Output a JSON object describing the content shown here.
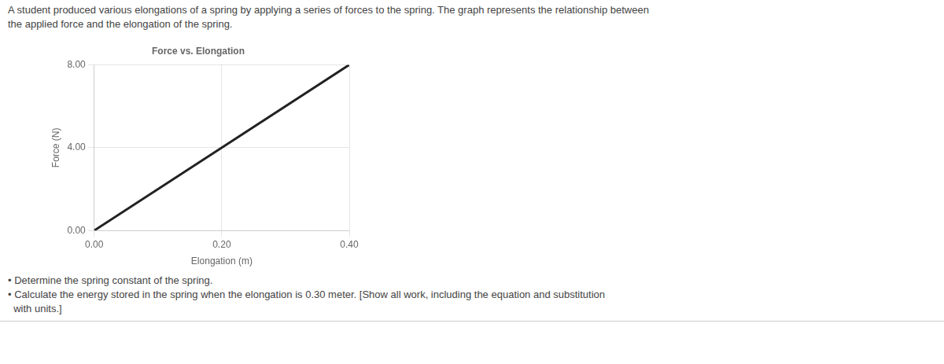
{
  "chart_data": {
    "type": "line",
    "title": "Force vs. Elongation",
    "subtitle": [
      "A student produced various elongations of a spring by applying a series of forces to the spring. The graph represents the relationship between",
      "the applied force and the elongation of the spring."
    ],
    "annotations": [
      "• Determine the spring constant of the spring.",
      "• Calculate the energy stored in the spring when the elongation is 0.30 meter. [Show all work, including the equation and substitution",
      "  with units.]"
    ],
    "xlabel": "Elongation (m)",
    "ylabel": "Force (N)",
    "x": [
      0.0,
      0.4
    ],
    "values": [
      0.0,
      8.0
    ],
    "color": "#222222",
    "xlim": [
      0.0,
      0.4
    ],
    "ylim": [
      0.0,
      8.0
    ],
    "xticks": [
      {
        "value": 0.0,
        "label": "0.00"
      },
      {
        "value": 0.2,
        "label": "0.20"
      },
      {
        "value": 0.4,
        "label": "0.40"
      }
    ],
    "yticks": [
      {
        "value": 0.0,
        "label": "0.00"
      },
      {
        "value": 4.0,
        "label": "4.00"
      },
      {
        "value": 8.0,
        "label": "8.00"
      }
    ],
    "grid": true
  }
}
